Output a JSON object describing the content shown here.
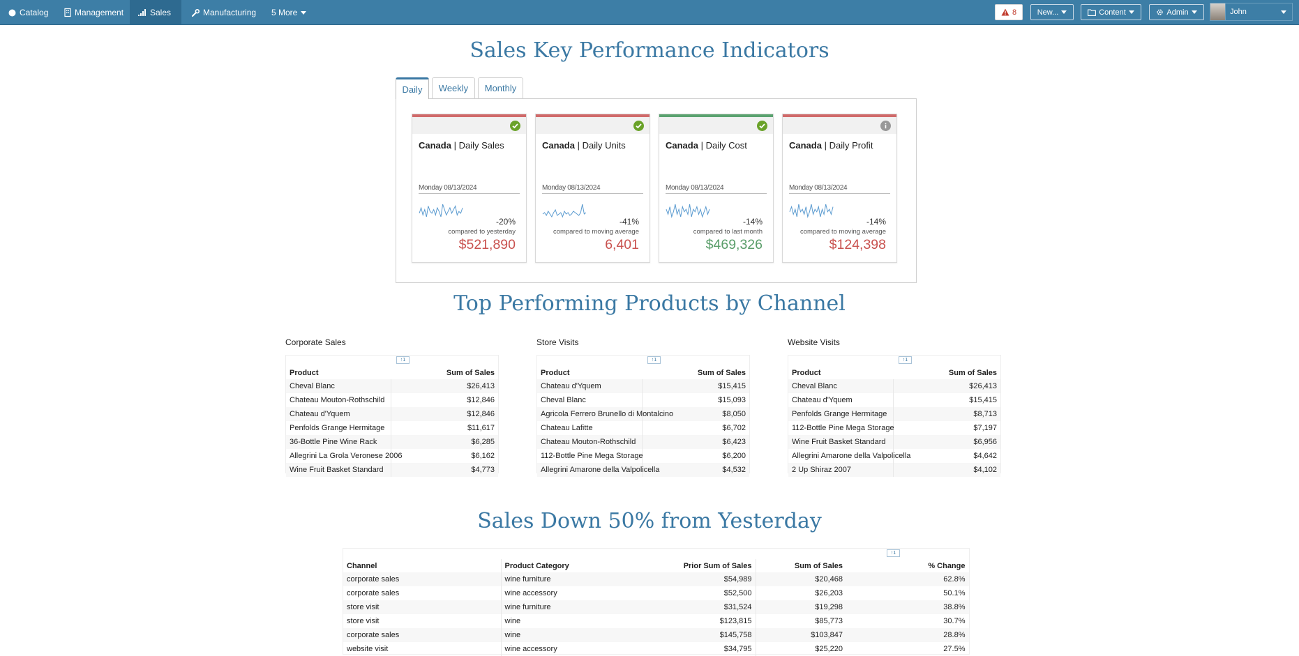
{
  "nav": {
    "items": [
      {
        "label": "Catalog",
        "icon": "circle-icon"
      },
      {
        "label": "Management",
        "icon": "building-icon"
      },
      {
        "label": "Sales",
        "icon": "signal-bars-icon",
        "active": true
      },
      {
        "label": "Manufacturing",
        "icon": "wrench-icon"
      },
      {
        "label": "5 More",
        "icon": "chevron-down-icon"
      }
    ],
    "alert_count": "8",
    "new_label": "New...",
    "content_label": "Content",
    "admin_label": "Admin",
    "user_name": "John"
  },
  "kpi": {
    "title": "Sales Key Performance Indicators",
    "tabs": [
      "Daily",
      "Weekly",
      "Monthly"
    ],
    "active_tab": "Daily",
    "cards": [
      {
        "region": "Canada",
        "metric": "| Daily Sales",
        "date": "Monday 08/13/2024",
        "change": "-20%",
        "compare": "compared to yesterday",
        "value": "$521,890",
        "status": "check-icon",
        "bar_color": "#d06a6a",
        "value_color": "#c9524f",
        "spark": [
          4,
          7,
          3,
          6,
          2,
          8,
          5,
          4,
          6,
          3,
          7,
          5,
          2,
          9,
          6,
          3,
          5,
          7,
          4,
          6,
          8,
          3,
          5,
          4,
          7
        ]
      },
      {
        "region": "Canada",
        "metric": "| Daily Units",
        "date": "Monday 08/13/2024",
        "change": "-41%",
        "compare": "compared to moving average",
        "value": "6,401",
        "status": "check-icon",
        "bar_color": "#d06a6a",
        "value_color": "#c9524f",
        "spark": [
          5,
          6,
          4,
          7,
          5,
          3,
          6,
          8,
          4,
          5,
          6,
          3,
          7,
          5,
          6,
          4,
          5,
          7,
          6,
          5,
          4,
          6,
          12,
          5,
          6
        ]
      },
      {
        "region": "Canada",
        "metric": "| Daily Cost",
        "date": "Monday 08/13/2024",
        "change": "-14%",
        "compare": "compared to last month",
        "value": "$469,326",
        "status": "check-icon",
        "bar_color": "#5aa26f",
        "value_color": "#5a9e6a",
        "spark": [
          6,
          4,
          7,
          3,
          5,
          8,
          4,
          6,
          3,
          7,
          5,
          6,
          4,
          8,
          3,
          6,
          5,
          7,
          4,
          6,
          3,
          5,
          7,
          4,
          6
        ]
      },
      {
        "region": "Canada",
        "metric": "| Daily Profit",
        "date": "Monday 08/13/2024",
        "change": "-14%",
        "compare": "compared to moving average",
        "value": "$124,398",
        "status": "info-icon",
        "bar_color": "#d06a6a",
        "value_color": "#c9524f",
        "spark": [
          5,
          7,
          4,
          6,
          3,
          8,
          5,
          6,
          4,
          7,
          3,
          5,
          8,
          4,
          6,
          5,
          7,
          3,
          6,
          4,
          8,
          5,
          6,
          4,
          7
        ]
      }
    ]
  },
  "top_products": {
    "title": "Top Performing Products by Channel",
    "columns": [
      "Product",
      "Sum of Sales"
    ],
    "sort_badge": "↑1",
    "tables": [
      {
        "title": "Corporate Sales",
        "rows": [
          [
            "Cheval Blanc",
            "$26,413"
          ],
          [
            "Chateau Mouton-Rothschild",
            "$12,846"
          ],
          [
            "Chateau d'Yquem",
            "$12,846"
          ],
          [
            "Penfolds Grange Hermitage",
            "$11,617"
          ],
          [
            "36-Bottle Pine Wine Rack",
            "$6,285"
          ],
          [
            "Allegrini La Grola Veronese 2006",
            "$6,162"
          ],
          [
            "Wine Fruit Basket Standard",
            "$4,773"
          ]
        ]
      },
      {
        "title": "Store Visits",
        "rows": [
          [
            "Chateau d'Yquem",
            "$15,415"
          ],
          [
            "Cheval Blanc",
            "$15,093"
          ],
          [
            "Agricola Ferrero Brunello di Montalcino",
            "$8,050"
          ],
          [
            "Chateau Lafitte",
            "$6,702"
          ],
          [
            "Chateau Mouton-Rothschild",
            "$6,423"
          ],
          [
            "112-Bottle Pine Mega Storage",
            "$6,200"
          ],
          [
            "Allegrini Amarone della Valpolicella",
            "$4,532"
          ]
        ]
      },
      {
        "title": "Website Visits",
        "rows": [
          [
            "Cheval Blanc",
            "$26,413"
          ],
          [
            "Chateau d'Yquem",
            "$15,415"
          ],
          [
            "Penfolds Grange Hermitage",
            "$8,713"
          ],
          [
            "112-Bottle Pine Mega Storage",
            "$7,197"
          ],
          [
            "Wine Fruit Basket Standard",
            "$6,956"
          ],
          [
            "Allegrini Amarone della Valpolicella",
            "$4,642"
          ],
          [
            "2 Up Shiraz 2007",
            "$4,102"
          ]
        ]
      }
    ]
  },
  "sales_down": {
    "title": "Sales Down 50% from Yesterday",
    "sort_badge": "↑1",
    "columns": [
      "Channel",
      "Product Category",
      "Prior Sum of Sales",
      "Sum of Sales",
      "% Change"
    ],
    "rows": [
      [
        "corporate sales",
        "wine furniture",
        "$54,989",
        "$20,468",
        "62.8%"
      ],
      [
        "corporate sales",
        "wine accessory",
        "$52,500",
        "$26,203",
        "50.1%"
      ],
      [
        "store visit",
        "wine furniture",
        "$31,524",
        "$19,298",
        "38.8%"
      ],
      [
        "store visit",
        "wine",
        "$123,815",
        "$85,773",
        "30.7%"
      ],
      [
        "corporate sales",
        "wine",
        "$145,758",
        "$103,847",
        "28.8%"
      ],
      [
        "website visit",
        "wine accessory",
        "$34,795",
        "$25,220",
        "27.5%"
      ]
    ]
  }
}
